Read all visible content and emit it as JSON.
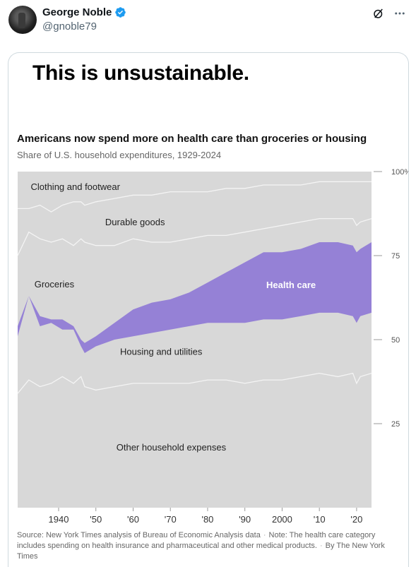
{
  "post": {
    "display_name": "George Noble",
    "handle": "@gnoble79",
    "text": "This is unsustainable.",
    "icons": {
      "verified": "verified-badge-icon",
      "grok": "grok-icon",
      "more": "more-icon"
    }
  },
  "chart": {
    "title": "Americans now spend more on health care than groceries or housing",
    "subtitle": "Share of U.S. household expenditures, 1929-2024",
    "source_text": "Source: New York Times analysis of Bureau of Economic Analysis data",
    "note_text": "Note: The health care category includes spending on health insurance and pharmaceutical and other medical products.",
    "credit_text": "By The New York Times"
  },
  "chart_data": {
    "type": "area",
    "stacked": true,
    "title": "Americans now spend more on health care than groceries or housing",
    "subtitle": "Share of U.S. household expenditures, 1929-2024",
    "x_ticks": [
      "1940",
      "'50",
      "'60",
      "'70",
      "'80",
      "'90",
      "2000",
      "'10",
      "'20"
    ],
    "y_ticks": [
      "25",
      "50",
      "75",
      "100%"
    ],
    "ylim": [
      0,
      100
    ],
    "xlim": [
      1929,
      2024
    ],
    "grid": false,
    "colors": {
      "background": "#d8d8d8",
      "boundary": "#f4f4f4",
      "health_care": "#9581d6",
      "tick": "#555555"
    },
    "band_labels": [
      "Clothing and footwear",
      "Durable goods",
      "Groceries",
      "Health care",
      "Housing and utilities",
      "Other household expenses"
    ],
    "boundaries": {
      "x": [
        1929,
        1932,
        1935,
        1938,
        1941,
        1944,
        1946,
        1947,
        1950,
        1955,
        1960,
        1965,
        1970,
        1975,
        1980,
        1985,
        1990,
        1995,
        2000,
        2005,
        2010,
        2015,
        2019,
        2020,
        2021,
        2024
      ],
      "other_top": [
        34,
        38,
        36,
        37,
        39,
        37,
        39,
        36,
        35,
        36,
        37,
        37,
        37,
        37,
        38,
        38,
        37,
        38,
        38,
        39,
        40,
        39,
        40,
        37,
        39,
        40
      ],
      "housing_top": [
        51,
        63,
        54,
        55,
        53,
        53,
        48,
        46,
        48,
        50,
        51,
        52,
        53,
        54,
        55,
        55,
        55,
        56,
        56,
        57,
        58,
        58,
        57,
        55,
        57,
        58
      ],
      "health_top": [
        54,
        63,
        57,
        56,
        56,
        54,
        50,
        49,
        51,
        55,
        59,
        61,
        62,
        64,
        67,
        70,
        73,
        76,
        76,
        77,
        79,
        79,
        78,
        76,
        77,
        79
      ],
      "groceries_top": [
        75,
        82,
        80,
        79,
        80,
        78,
        80,
        79,
        78,
        78,
        80,
        79,
        79,
        80,
        81,
        81,
        82,
        83,
        84,
        85,
        86,
        86,
        86,
        84,
        85,
        86
      ],
      "durable_top": [
        89,
        89,
        90,
        88,
        90,
        91,
        91,
        90,
        91,
        92,
        93,
        93,
        94,
        94,
        94,
        95,
        95,
        96,
        96,
        96,
        97,
        97,
        97,
        97,
        97,
        97
      ]
    }
  }
}
